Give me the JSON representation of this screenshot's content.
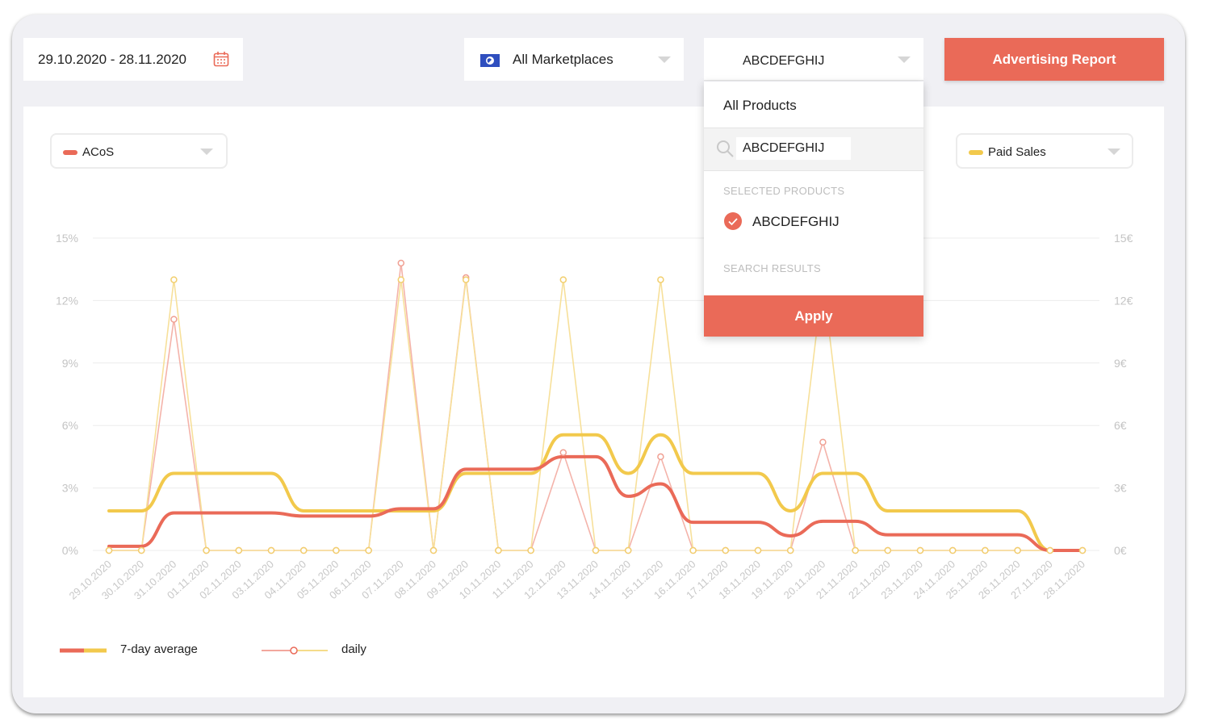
{
  "toolbar": {
    "date_range": "29.10.2020 - 28.11.2020",
    "marketplace": "All Marketplaces",
    "product": "ABCDEFGHIJ",
    "report_button": "Advertising Report"
  },
  "metric_selectors": {
    "left": {
      "label": "ACoS",
      "color": "#ea6a58"
    },
    "right": {
      "label": "Paid Sales",
      "color": "#f2c94c"
    }
  },
  "product_dropdown": {
    "all_products": "All Products",
    "search_value": "ABCDEFGHIJ",
    "selected_header": "SELECTED PRODUCTS",
    "selected_items": [
      "ABCDEFGHIJ"
    ],
    "results_header": "SEARCH RESULTS",
    "apply_label": "Apply"
  },
  "legend": {
    "avg_label": "7-day average",
    "daily_label": "daily"
  },
  "colors": {
    "acos": "#ea6a58",
    "sales": "#f2c94c",
    "accent": "#ea6a58"
  },
  "chart_data": {
    "type": "line",
    "x": [
      "29.10.2020",
      "30.10.2020",
      "31.10.2020",
      "01.11.2020",
      "02.11.2020",
      "03.11.2020",
      "04.11.2020",
      "05.11.2020",
      "06.11.2020",
      "07.11.2020",
      "08.11.2020",
      "09.11.2020",
      "10.11.2020",
      "11.11.2020",
      "12.11.2020",
      "13.11.2020",
      "14.11.2020",
      "15.11.2020",
      "16.11.2020",
      "17.11.2020",
      "18.11.2020",
      "19.11.2020",
      "20.11.2020",
      "21.11.2020",
      "22.11.2020",
      "23.11.2020",
      "24.11.2020",
      "25.11.2020",
      "26.11.2020",
      "27.11.2020",
      "28.11.2020"
    ],
    "y_left": {
      "ticks": [
        "0%",
        "3%",
        "6%",
        "9%",
        "12%",
        "15%"
      ],
      "ylim": [
        0,
        15
      ]
    },
    "y_right": {
      "ticks": [
        "0€",
        "3€",
        "6€",
        "9€",
        "12€",
        "15€"
      ],
      "ylim": [
        0,
        15
      ]
    },
    "grid": true,
    "series": [
      {
        "name": "ACoS daily",
        "axis": "left",
        "style": "daily",
        "values": [
          0,
          0,
          11.1,
          0,
          0,
          0,
          0,
          0,
          0,
          13.8,
          0,
          13.1,
          0,
          0,
          4.7,
          0,
          0,
          4.5,
          0,
          0,
          0,
          0,
          5.2,
          0,
          0,
          0,
          0,
          0,
          0,
          0,
          0
        ]
      },
      {
        "name": "Paid Sales daily",
        "axis": "right",
        "style": "daily",
        "values": [
          0,
          0,
          13,
          0,
          0,
          0,
          0,
          0,
          0,
          13,
          0,
          13,
          0,
          0,
          13,
          0,
          0,
          13,
          0,
          0,
          0,
          0,
          13,
          0,
          0,
          0,
          0,
          0,
          0,
          0,
          0
        ]
      },
      {
        "name": "ACoS 7-day average",
        "axis": "left",
        "style": "avg",
        "values": [
          0.2,
          0.2,
          1.8,
          1.8,
          1.8,
          1.8,
          1.65,
          1.65,
          1.65,
          2.0,
          2.0,
          3.9,
          3.9,
          3.9,
          4.5,
          4.5,
          2.6,
          3.2,
          1.35,
          1.35,
          1.35,
          0.7,
          1.4,
          1.4,
          0.75,
          0.75,
          0.75,
          0.75,
          0.75,
          0,
          0
        ]
      },
      {
        "name": "Paid Sales 7-day average",
        "axis": "right",
        "style": "avg",
        "values": [
          1.9,
          1.9,
          3.7,
          3.7,
          3.7,
          3.7,
          1.9,
          1.9,
          1.9,
          1.9,
          1.9,
          3.7,
          3.7,
          3.7,
          5.55,
          5.55,
          3.7,
          5.55,
          3.7,
          3.7,
          3.7,
          1.9,
          3.7,
          3.7,
          1.9,
          1.9,
          1.9,
          1.9,
          1.9,
          0,
          0
        ]
      }
    ]
  }
}
